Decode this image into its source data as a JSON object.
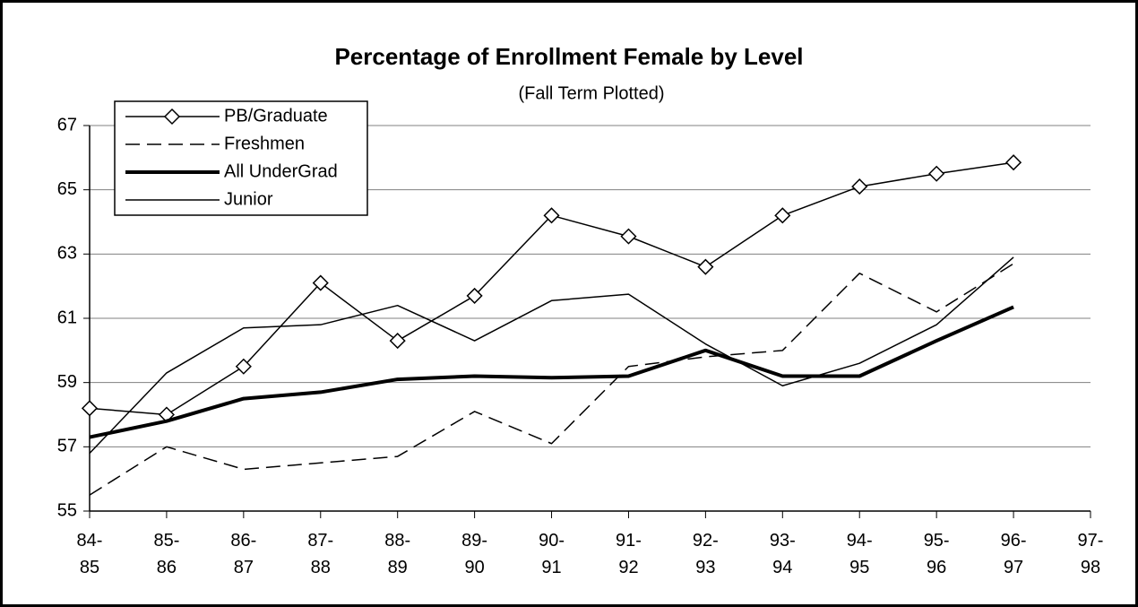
{
  "chart_data": {
    "type": "line",
    "title": "Percentage of Enrollment Female by Level",
    "subtitle": "(Fall Term Plotted)",
    "categories": [
      "84-85",
      "85-86",
      "86-87",
      "87-88",
      "88-89",
      "89-90",
      "90-91",
      "91-92",
      "92-93",
      "93-94",
      "94-95",
      "95-96",
      "96-97",
      "97-98"
    ],
    "series": [
      {
        "name": "PB/Graduate",
        "color": "#000000",
        "width": 1.5,
        "marker": "diamond",
        "values": [
          58.2,
          58.0,
          59.5,
          62.1,
          60.3,
          61.7,
          64.2,
          63.55,
          62.6,
          64.2,
          65.1,
          65.5,
          65.85,
          null
        ]
      },
      {
        "name": "Freshmen",
        "color": "#000000",
        "width": 1.5,
        "dash": true,
        "values": [
          55.5,
          57.0,
          56.3,
          56.5,
          56.7,
          58.1,
          57.1,
          59.5,
          59.8,
          60.0,
          62.4,
          61.2,
          62.7,
          null
        ]
      },
      {
        "name": "All UnderGrad",
        "color": "#000000",
        "width": 4,
        "values": [
          57.3,
          57.8,
          58.5,
          58.7,
          59.1,
          59.2,
          59.15,
          59.2,
          60.0,
          59.2,
          59.2,
          60.3,
          61.35,
          null
        ]
      },
      {
        "name": "Junior",
        "color": "#000000",
        "width": 1.5,
        "values": [
          56.8,
          59.3,
          60.7,
          60.8,
          61.4,
          60.3,
          61.55,
          61.75,
          60.2,
          58.9,
          59.6,
          60.8,
          62.9,
          null
        ]
      }
    ],
    "ylim": [
      55,
      67
    ],
    "yticks": [
      55,
      57,
      59,
      61,
      63,
      65,
      67
    ],
    "grid": true,
    "legend": "top-left"
  }
}
